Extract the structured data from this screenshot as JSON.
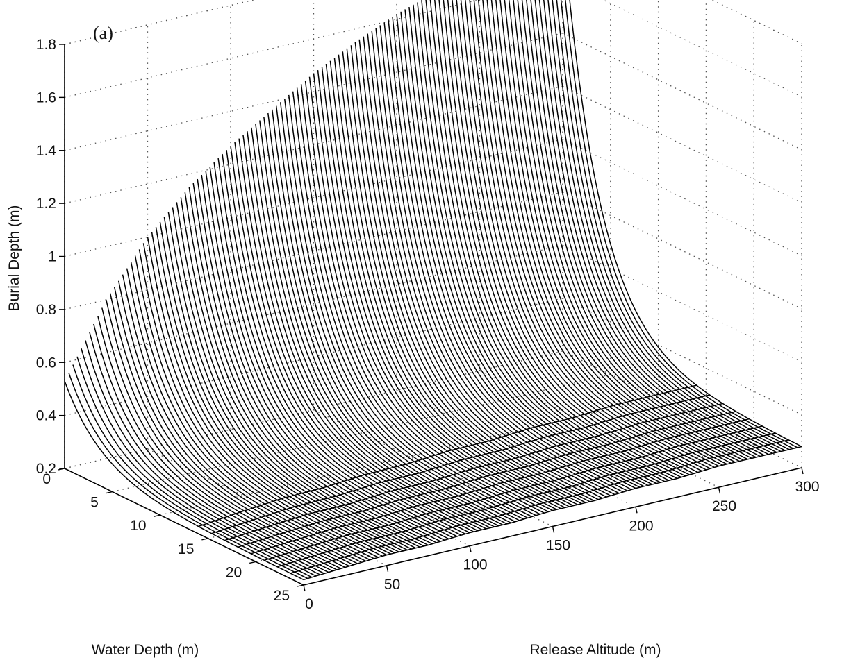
{
  "chart_data": {
    "type": "surface",
    "panel_label": "(a)",
    "xlabel": "Release Altitude (m)",
    "ylabel": "Water Depth (m)",
    "zlabel": "Burial Depth (m)",
    "xlim": [
      0,
      300
    ],
    "ylim": [
      0,
      25
    ],
    "zlim": [
      0.2,
      1.8
    ],
    "x_ticks": [
      "0",
      "50",
      "100",
      "150",
      "200",
      "250",
      "300"
    ],
    "y_ticks": [
      "0",
      "5",
      "10",
      "15",
      "20",
      "25"
    ],
    "z_ticks": [
      "0.2",
      "0.4",
      "0.6",
      "0.8",
      "1",
      "1.2",
      "1.4",
      "1.6",
      "1.8"
    ],
    "grid": true,
    "surface": {
      "description_free": true,
      "release_altitude": [
        0,
        25,
        50,
        75,
        100,
        125,
        150,
        175,
        200,
        225,
        250,
        275,
        300
      ],
      "water_depth_samples": [
        0,
        2,
        4,
        6,
        8,
        10,
        12,
        14,
        16,
        18,
        20,
        22,
        24
      ],
      "burial_depth_at_zero_water_depth": [
        0.53,
        0.8,
        1.0,
        1.15,
        1.27,
        1.37,
        1.47,
        1.55,
        1.62,
        1.67,
        1.72,
        1.77,
        1.8
      ],
      "burial_depth_at_max_water_depth": [
        0.22,
        0.23,
        0.24,
        0.24,
        0.25,
        0.25,
        0.26,
        0.26,
        0.27,
        0.27,
        0.28,
        0.28,
        0.28
      ]
    }
  }
}
